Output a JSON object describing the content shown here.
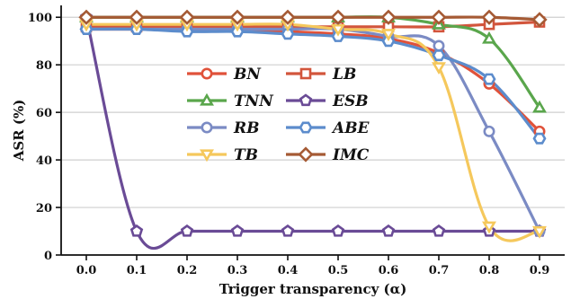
{
  "chart_data": {
    "type": "line",
    "title": "",
    "xlabel": "Trigger transparency (α)",
    "ylabel": "ASR (%)",
    "x": [
      0.0,
      0.1,
      0.2,
      0.3,
      0.4,
      0.5,
      0.6,
      0.7,
      0.8,
      0.9
    ],
    "x_tick_labels": [
      "0.0",
      "0.1",
      "0.2",
      "0.3",
      "0.4",
      "0.5",
      "0.6",
      "0.7",
      "0.8",
      "0.9"
    ],
    "xlim": [
      -0.05,
      0.95
    ],
    "ylim": [
      0,
      105
    ],
    "y_ticks": [
      0,
      20,
      40,
      60,
      80,
      100
    ],
    "grid": "horizontal",
    "legend_position": "center-left",
    "series": [
      {
        "name": "BN",
        "color": "#e0523a",
        "marker": "circle",
        "values": [
          95,
          95,
          95,
          95,
          94,
          93,
          91,
          85,
          72,
          52
        ]
      },
      {
        "name": "LB",
        "color": "#d2553c",
        "marker": "square",
        "values": [
          96,
          96,
          96,
          96,
          96,
          96,
          96,
          96,
          97,
          98
        ]
      },
      {
        "name": "TNN",
        "color": "#5aa64c",
        "marker": "triangle-up",
        "values": [
          100,
          100,
          100,
          100,
          100,
          100,
          100,
          97,
          91,
          62
        ]
      },
      {
        "name": "ESB",
        "color": "#6a4b96",
        "marker": "pentagon",
        "values": [
          100,
          10,
          10,
          10,
          10,
          10,
          10,
          10,
          10,
          10
        ]
      },
      {
        "name": "RB",
        "color": "#7b8bc4",
        "marker": "circle",
        "values": [
          95,
          95,
          95,
          95,
          95,
          95,
          92,
          88,
          52,
          10
        ]
      },
      {
        "name": "ABE",
        "color": "#5c8ccc",
        "marker": "hexagon",
        "values": [
          95,
          95,
          94,
          94,
          93,
          92,
          90,
          84,
          74,
          49
        ]
      },
      {
        "name": "TB",
        "color": "#f5c85c",
        "marker": "triangle-down",
        "values": [
          97,
          97,
          97,
          97,
          97,
          95,
          93,
          79,
          12,
          10
        ]
      },
      {
        "name": "IMC",
        "color": "#a55a34",
        "marker": "diamond",
        "values": [
          100,
          100,
          100,
          100,
          100,
          100,
          100,
          100,
          100,
          99
        ]
      }
    ]
  }
}
